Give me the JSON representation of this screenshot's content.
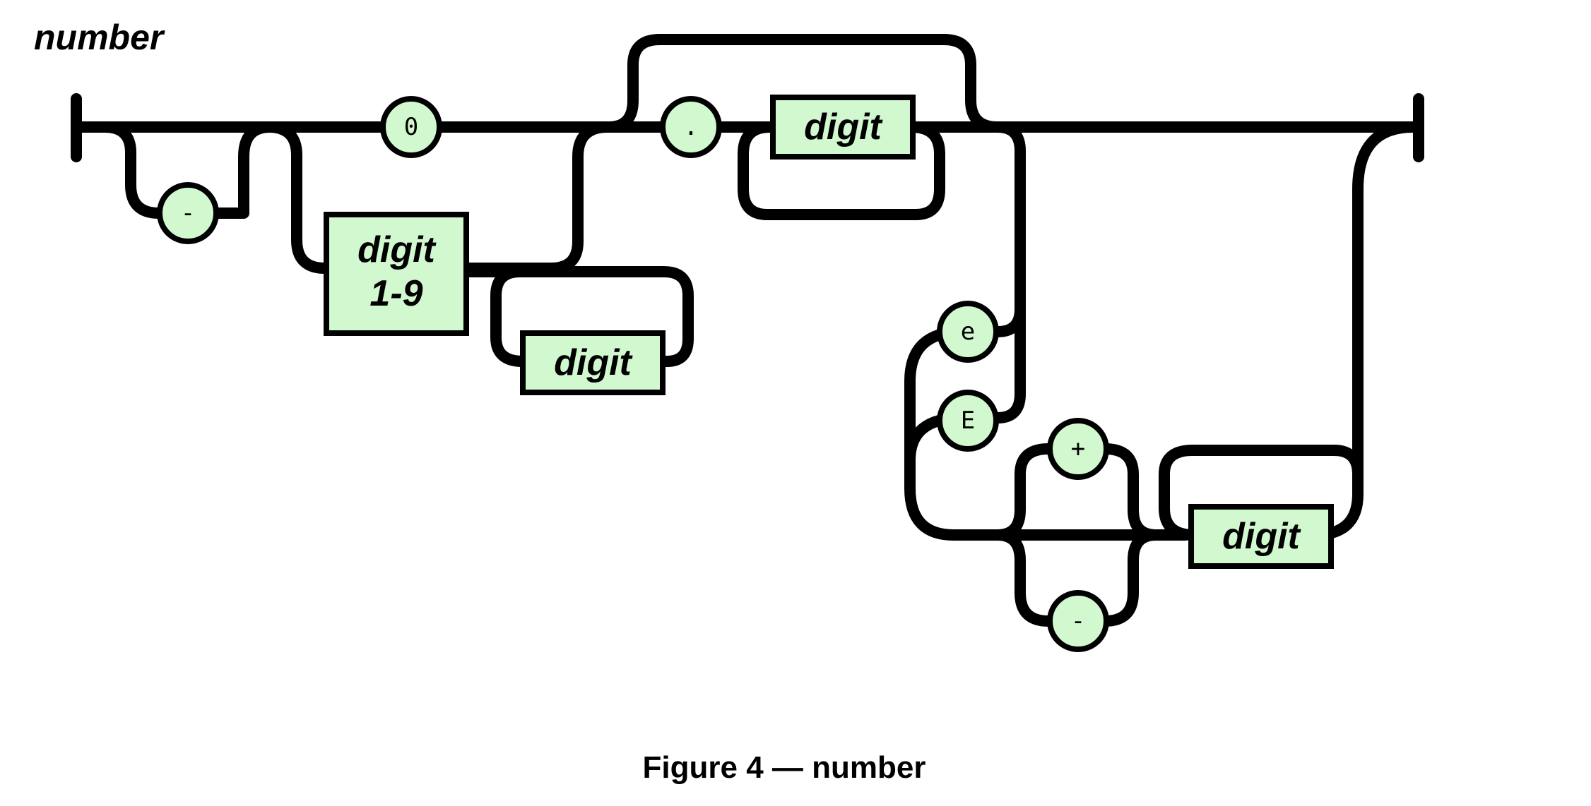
{
  "diagram": {
    "title": "number",
    "caption": "Figure 4 — number",
    "colors": {
      "node_fill": "#d2f8cf",
      "line": "#000000"
    },
    "terminals": {
      "minus": "-",
      "zero": "0",
      "dot": ".",
      "e_lower": "e",
      "e_upper": "E",
      "plus": "+",
      "exp_minus": "-"
    },
    "nonterminals": {
      "digit_1_9_line1": "digit",
      "digit_1_9_line2": "1-9",
      "int_digit": "digit",
      "frac_digit": "digit",
      "exp_digit": "digit"
    }
  }
}
